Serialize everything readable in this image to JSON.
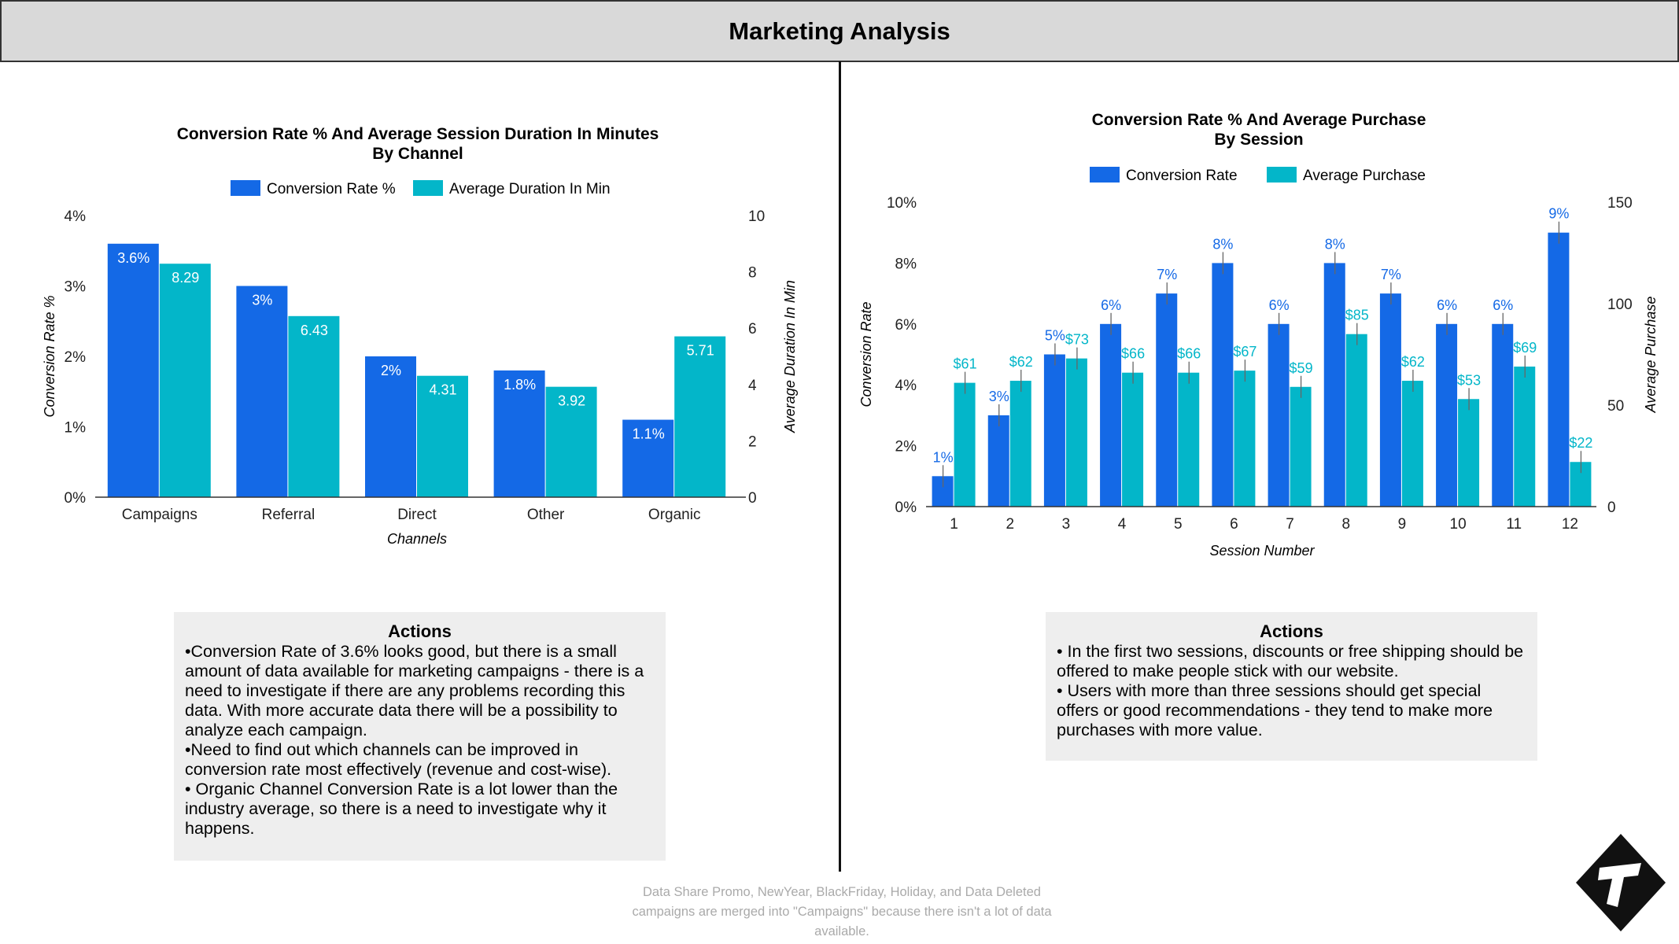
{
  "page": {
    "title": "Marketing Analysis"
  },
  "colors": {
    "primary": "#1469e6",
    "secondary": "#03b6c9",
    "label_primary": "#1469e6",
    "label_secondary": "#03b6c9"
  },
  "chart_data": [
    {
      "type": "bar",
      "title": "Conversion Rate % And Average Session Duration In Minutes",
      "subtitle": "By Channel",
      "xlabel": "Channels",
      "ylabel_left": "Conversion Rate %",
      "ylabel_right": "Average Duration In Min",
      "categories": [
        "Campaigns",
        "Referral",
        "Direct",
        "Other",
        "Organic"
      ],
      "series": [
        {
          "name": "Conversion Rate %",
          "axis": "left",
          "values": [
            3.6,
            3,
            2,
            1.8,
            1.1
          ],
          "labels": [
            "3.6%",
            "3%",
            "2%",
            "1.8%",
            "1.1%"
          ]
        },
        {
          "name": "Average Duration In Min",
          "axis": "right",
          "values": [
            8.29,
            6.43,
            4.31,
            3.92,
            5.71
          ],
          "labels": [
            "8.29",
            "6.43",
            "4.31",
            "3.92",
            "5.71"
          ]
        }
      ],
      "ylim_left": [
        0,
        4
      ],
      "ylim_right": [
        0,
        10
      ],
      "yticks_left": [
        "0%",
        "1%",
        "2%",
        "3%",
        "4%"
      ],
      "yticks_right": [
        "0",
        "2",
        "4",
        "6",
        "8",
        "10"
      ],
      "legend": "top",
      "grid": false
    },
    {
      "type": "bar",
      "title": "Conversion Rate % And Average Purchase",
      "subtitle": "By Session",
      "xlabel": "Session Number",
      "ylabel_left": "Conversion Rate",
      "ylabel_right": "Average Purchase",
      "categories": [
        "1",
        "2",
        "3",
        "4",
        "5",
        "6",
        "7",
        "8",
        "9",
        "10",
        "11",
        "12"
      ],
      "series": [
        {
          "name": "Conversion Rate",
          "axis": "left",
          "values": [
            1,
            3,
            5,
            6,
            7,
            8,
            6,
            8,
            7,
            6,
            6,
            9
          ],
          "labels": [
            "1%",
            "3%",
            "5%",
            "6%",
            "7%",
            "8%",
            "6%",
            "8%",
            "7%",
            "6%",
            "6%",
            "9%"
          ]
        },
        {
          "name": "Average Purchase",
          "axis": "right",
          "values": [
            61,
            62,
            73,
            66,
            66,
            67,
            59,
            85,
            62,
            53,
            69,
            22
          ],
          "labels": [
            "$61",
            "$62",
            "$73",
            "$66",
            "$66",
            "$67",
            "$59",
            "$85",
            "$62",
            "$53",
            "$69",
            "$22"
          ]
        }
      ],
      "ylim_left": [
        0,
        10
      ],
      "ylim_right": [
        0,
        150
      ],
      "yticks_left": [
        "0%",
        "2%",
        "4%",
        "6%",
        "8%",
        "10%"
      ],
      "yticks_right": [
        "0",
        "50",
        "100",
        "150"
      ],
      "legend": "top",
      "grid": false
    }
  ],
  "actions_left": {
    "title": "Actions",
    "text": "•Conversion Rate of 3.6% looks good, but there is a small amount of data available for marketing campaigns - there is a need to investigate if there are any problems recording this data. With more accurate data there will be a possibility to analyze each campaign.\n•Need to find out which channels can be improved in conversion rate most effectively (revenue and cost-wise).\n• Organic Channel Conversion Rate is a lot lower than the industry average, so there is a need to investigate why it happens."
  },
  "actions_right": {
    "title": "Actions",
    "text": "• In the first two sessions, discounts or free shipping should be offered to make people stick with our website.\n• Users with more than three sessions should get special offers or good recommendations - they tend to make more purchases with more value."
  },
  "footnote": "Data Share Promo, NewYear, BlackFriday, Holiday, and Data Deleted campaigns are merged into \"Campaigns\" because there isn't a lot of data available.",
  "logo": {
    "icon": "t-diamond-logo"
  }
}
